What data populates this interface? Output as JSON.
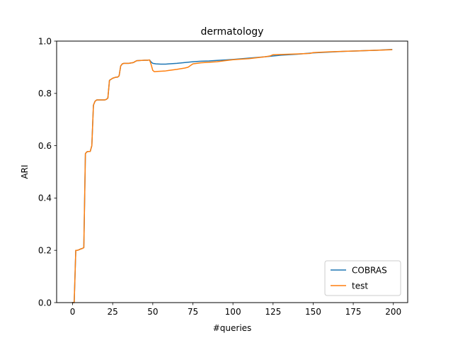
{
  "chart_data": {
    "type": "line",
    "title": "dermatology",
    "xlabel": "#queries",
    "ylabel": "ARI",
    "xlim": [
      -9.95,
      208.95
    ],
    "ylim": [
      0.0,
      1.0
    ],
    "xticks": [
      0,
      25,
      50,
      75,
      100,
      125,
      150,
      175,
      200
    ],
    "xtick_labels": [
      "0",
      "25",
      "50",
      "75",
      "100",
      "125",
      "150",
      "175",
      "200"
    ],
    "yticks": [
      0.0,
      0.2,
      0.4,
      0.6,
      0.8,
      1.0
    ],
    "ytick_labels": [
      "0.0",
      "0.2",
      "0.4",
      "0.6",
      "0.8",
      "1.0"
    ],
    "grid": false,
    "legend_position": "lower-right",
    "series": [
      {
        "name": "COBRAS",
        "color": "#1f77b4",
        "x": [
          0,
          1,
          2,
          3,
          4,
          5,
          6,
          7,
          8,
          9,
          10,
          11,
          12,
          13,
          14,
          15,
          16,
          18,
          20,
          21,
          22,
          23,
          25,
          27,
          28,
          29,
          30,
          31,
          32,
          35,
          37,
          38,
          39,
          40,
          45,
          47,
          48,
          49,
          50,
          52,
          55,
          58,
          60,
          65,
          70,
          75,
          80,
          85,
          90,
          95,
          100,
          110,
          120,
          125,
          130,
          140,
          150,
          160,
          170,
          180,
          190,
          199
        ],
        "y": [
          0.0,
          0.0,
          0.2,
          0.2,
          0.202,
          0.205,
          0.207,
          0.21,
          0.57,
          0.577,
          0.578,
          0.578,
          0.6,
          0.755,
          0.77,
          0.775,
          0.775,
          0.775,
          0.775,
          0.777,
          0.782,
          0.85,
          0.858,
          0.862,
          0.862,
          0.867,
          0.905,
          0.913,
          0.915,
          0.915,
          0.917,
          0.918,
          0.922,
          0.925,
          0.927,
          0.927,
          0.928,
          0.92,
          0.915,
          0.913,
          0.912,
          0.912,
          0.913,
          0.915,
          0.918,
          0.921,
          0.923,
          0.924,
          0.926,
          0.928,
          0.93,
          0.935,
          0.94,
          0.943,
          0.946,
          0.95,
          0.955,
          0.958,
          0.961,
          0.963,
          0.965,
          0.968
        ]
      },
      {
        "name": "test",
        "color": "#ff7f0e",
        "x": [
          0,
          1,
          2,
          3,
          4,
          5,
          6,
          7,
          8,
          9,
          10,
          11,
          12,
          13,
          14,
          15,
          16,
          18,
          20,
          21,
          22,
          23,
          25,
          27,
          28,
          29,
          30,
          31,
          32,
          35,
          37,
          38,
          39,
          40,
          45,
          47,
          48,
          49,
          50,
          51,
          53,
          55,
          58,
          60,
          65,
          68,
          70,
          72,
          75,
          80,
          85,
          90,
          95,
          100,
          110,
          120,
          123,
          125,
          130,
          140,
          148,
          150,
          160,
          170,
          180,
          190,
          199
        ],
        "y": [
          0.0,
          0.0,
          0.2,
          0.2,
          0.202,
          0.205,
          0.207,
          0.21,
          0.57,
          0.577,
          0.578,
          0.578,
          0.6,
          0.755,
          0.77,
          0.775,
          0.775,
          0.775,
          0.775,
          0.777,
          0.782,
          0.85,
          0.858,
          0.862,
          0.862,
          0.867,
          0.905,
          0.913,
          0.915,
          0.915,
          0.917,
          0.918,
          0.922,
          0.925,
          0.927,
          0.927,
          0.928,
          0.91,
          0.888,
          0.883,
          0.884,
          0.885,
          0.886,
          0.888,
          0.892,
          0.895,
          0.897,
          0.9,
          0.913,
          0.917,
          0.919,
          0.921,
          0.925,
          0.929,
          0.933,
          0.94,
          0.943,
          0.948,
          0.949,
          0.951,
          0.953,
          0.956,
          0.959,
          0.961,
          0.963,
          0.965,
          0.967
        ]
      }
    ]
  }
}
